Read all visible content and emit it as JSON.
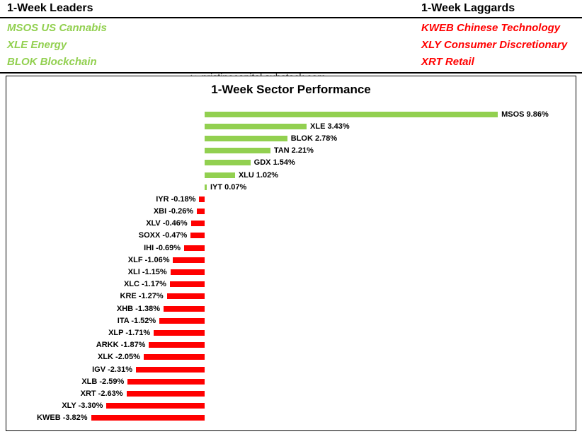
{
  "header": {
    "leaders_title": "1-Week Leaders",
    "laggards_title": "1-Week Laggards",
    "leaders": [
      "MSOS US Cannabis",
      "XLE Energy",
      "BLOK Blockchain"
    ],
    "laggards": [
      "KWEB Chinese Technology",
      "XLY Consumer Discretionary",
      "XRT Retail"
    ],
    "watermark": {
      "logo_glyph": "℘",
      "text": "pristinecapital.substack.com"
    }
  },
  "colors": {
    "positive": "#92d050",
    "negative": "#ff0000",
    "watermark_text": "#3b3b3b",
    "logo": "#7a7a7a"
  },
  "chart_data": {
    "type": "bar",
    "orientation": "horizontal",
    "title": "1-Week Sector Performance",
    "categories": [
      "MSOS",
      "XLE",
      "BLOK",
      "TAN",
      "GDX",
      "XLU",
      "IYT",
      "IYR",
      "XBI",
      "XLV",
      "SOXX",
      "IHI",
      "XLF",
      "XLI",
      "XLC",
      "KRE",
      "XHB",
      "ITA",
      "XLP",
      "ARKK",
      "XLK",
      "IGV",
      "XLB",
      "XRT",
      "XLY",
      "KWEB"
    ],
    "values": [
      9.86,
      3.43,
      2.78,
      2.21,
      1.54,
      1.02,
      0.07,
      -0.18,
      -0.26,
      -0.46,
      -0.47,
      -0.69,
      -1.06,
      -1.15,
      -1.17,
      -1.27,
      -1.38,
      -1.52,
      -1.71,
      -1.87,
      -2.05,
      -2.31,
      -2.59,
      -2.63,
      -3.3,
      -3.82
    ],
    "labels": [
      "MSOS 9.86%",
      "XLE 3.43%",
      "BLOK 2.78%",
      "TAN 2.21%",
      "GDX 1.54%",
      "XLU 1.02%",
      "IYT 0.07%",
      "IYR -0.18%",
      "XBI -0.26%",
      "XLV -0.46%",
      "SOXX -0.47%",
      "IHI -0.69%",
      "XLF -1.06%",
      "XLI -1.15%",
      "XLC -1.17%",
      "KRE -1.27%",
      "XHB -1.38%",
      "ITA -1.52%",
      "XLP -1.71%",
      "ARKK -1.87%",
      "XLK -2.05%",
      "IGV -2.31%",
      "XLB -2.59%",
      "XRT -2.63%",
      "XLY -3.30%",
      "KWEB -3.82%"
    ],
    "xlim": [
      -4.5,
      12.5
    ],
    "grid": false,
    "legend": false,
    "axes_hidden": true,
    "value_label_position": "outside-end",
    "bar_color_rule": "positive bars green, negative bars red"
  }
}
